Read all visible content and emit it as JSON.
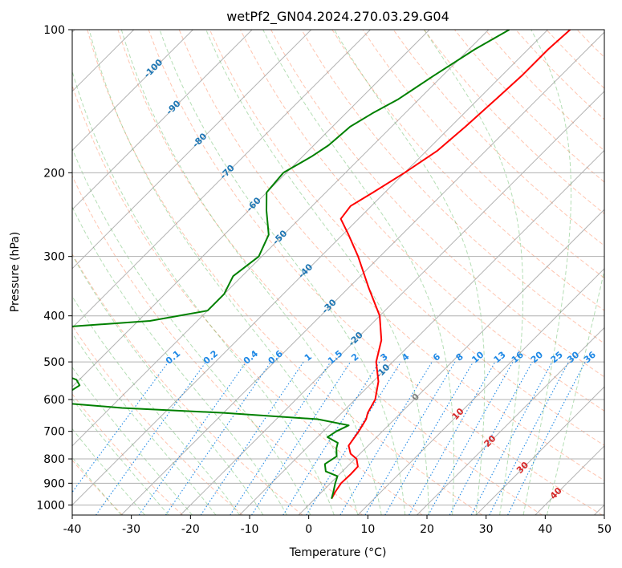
{
  "chart_data": {
    "type": "line",
    "subtype": "skew-t log-p diagram",
    "title": "wetPf2_GN04.2024.270.03.29.G04",
    "xlabel": "Temperature (°C)",
    "ylabel": "Pressure (hPa)",
    "xlim": [
      -40,
      50
    ],
    "ylim": [
      1050,
      100
    ],
    "y_scale": "log",
    "grid": true,
    "x_ticks": [
      "-40",
      "-30",
      "-20",
      "-10",
      "0",
      "10",
      "20",
      "30",
      "40",
      "50"
    ],
    "y_ticks": [
      "100",
      "200",
      "300",
      "400",
      "500",
      "600",
      "700",
      "800",
      "900",
      "1000"
    ],
    "colors": {
      "temperature": "#ff0000",
      "dewpoint": "#008000",
      "isotherm": "#808080",
      "dry_adiabat": "#ff7f50",
      "moist_adiabat": "#2ca02c",
      "mixing_ratio": "#1e88e5",
      "isotherm_label": "#1f77b4",
      "warm_label": "#d62728"
    },
    "series": [
      {
        "role": "temperature",
        "points": [
          {
            "p": 970,
            "t": 2.8
          },
          {
            "p": 940,
            "t": 2.3
          },
          {
            "p": 900,
            "t": 1.8
          },
          {
            "p": 860,
            "t": 1.9
          },
          {
            "p": 830,
            "t": 1.8
          },
          {
            "p": 800,
            "t": 0.3
          },
          {
            "p": 780,
            "t": -1.6
          },
          {
            "p": 750,
            "t": -3.3
          },
          {
            "p": 700,
            "t": -4.0
          },
          {
            "p": 660,
            "t": -4.8
          },
          {
            "p": 640,
            "t": -5.6
          },
          {
            "p": 600,
            "t": -6.6
          },
          {
            "p": 550,
            "t": -9.1
          },
          {
            "p": 500,
            "t": -12.8
          },
          {
            "p": 450,
            "t": -15.6
          },
          {
            "p": 400,
            "t": -20.0
          },
          {
            "p": 350,
            "t": -26.5
          },
          {
            "p": 300,
            "t": -33.7
          },
          {
            "p": 270,
            "t": -39.0
          },
          {
            "p": 250,
            "t": -43.0
          },
          {
            "p": 235,
            "t": -43.5
          },
          {
            "p": 220,
            "t": -42.0
          },
          {
            "p": 200,
            "t": -40.0
          },
          {
            "p": 180,
            "t": -38.2
          },
          {
            "p": 160,
            "t": -37.5
          },
          {
            "p": 140,
            "t": -37.0
          },
          {
            "p": 125,
            "t": -36.6
          },
          {
            "p": 110,
            "t": -36.6
          },
          {
            "p": 100,
            "t": -36.2
          }
        ]
      },
      {
        "role": "dewpoint",
        "points": [
          {
            "p": 970,
            "t": 2.8
          },
          {
            "p": 940,
            "t": 2.0
          },
          {
            "p": 900,
            "t": 0.8
          },
          {
            "p": 870,
            "t": 0.0
          },
          {
            "p": 850,
            "t": -2.8
          },
          {
            "p": 820,
            "t": -4.2
          },
          {
            "p": 790,
            "t": -3.5
          },
          {
            "p": 760,
            "t": -4.9
          },
          {
            "p": 740,
            "t": -5.6
          },
          {
            "p": 720,
            "t": -8.3
          },
          {
            "p": 700,
            "t": -7.8
          },
          {
            "p": 680,
            "t": -6.7
          },
          {
            "p": 660,
            "t": -13.0
          },
          {
            "p": 640,
            "t": -30.0
          },
          {
            "p": 625,
            "t": -48.0
          },
          {
            "p": 610,
            "t": -59.0
          },
          {
            "p": 600,
            "t": -60.5
          },
          {
            "p": 590,
            "t": -60.0
          },
          {
            "p": 560,
            "t": -59.0
          },
          {
            "p": 545,
            "t": -60.5
          },
          {
            "p": 530,
            "t": -64.0
          },
          {
            "p": 515,
            "t": -75.0
          },
          {
            "p": 505,
            "t": -90.0
          },
          {
            "p": 450,
            "t": -130.0
          },
          {
            "p": 430,
            "t": -80.0
          },
          {
            "p": 410,
            "t": -58.0
          },
          {
            "p": 390,
            "t": -50.0
          },
          {
            "p": 360,
            "t": -50.0
          },
          {
            "p": 330,
            "t": -51.5
          },
          {
            "p": 300,
            "t": -50.5
          },
          {
            "p": 270,
            "t": -52.5
          },
          {
            "p": 240,
            "t": -57.0
          },
          {
            "p": 220,
            "t": -60.0
          },
          {
            "p": 200,
            "t": -60.5
          },
          {
            "p": 185,
            "t": -58.5
          },
          {
            "p": 175,
            "t": -57.5
          },
          {
            "p": 160,
            "t": -57.0
          },
          {
            "p": 150,
            "t": -55.5
          },
          {
            "p": 140,
            "t": -53.5
          },
          {
            "p": 125,
            "t": -51.5
          },
          {
            "p": 110,
            "t": -49.0
          },
          {
            "p": 100,
            "t": -46.5
          }
        ]
      }
    ],
    "isotherm_labels": [
      "-100",
      "-90",
      "-80",
      "-70",
      "-60",
      "-50",
      "-40",
      "-30",
      "-20",
      "-10",
      "0",
      "10",
      "20",
      "30",
      "40"
    ],
    "mixing_ratio_labels": [
      "0.1",
      "0.2",
      "0.4",
      "0.6",
      "1",
      "1.5",
      "2",
      "3",
      "4",
      "6",
      "8",
      "10",
      "13",
      "16",
      "20",
      "25",
      "30",
      "36"
    ]
  }
}
